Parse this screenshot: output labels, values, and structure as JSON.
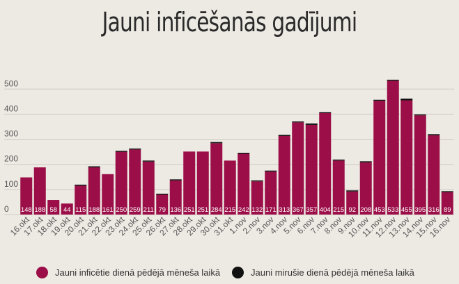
{
  "title": "Jauni inficēšanās gadījumi",
  "colors": {
    "background": "#ede9e3",
    "infected": "#9b0e47",
    "deaths": "#111111",
    "grid": "#cfcbc4",
    "axis_text": "#555555",
    "bar_label": "#ffffff"
  },
  "legend": {
    "infected_label": "Jauni inficētie dienā pēdējā mēneša laikā",
    "deaths_label": "Jauni mirušie dienā pēdējā mēneša laikā"
  },
  "chart_data": {
    "type": "bar",
    "stacked": true,
    "title": "Jauni inficēšanās gadījumi",
    "categories": [
      "16.okt",
      "17.okt",
      "18.okt",
      "19.okt",
      "20.okt",
      "21.okt",
      "22.okt",
      "23.okt",
      "24.okt",
      "25.okt",
      "26.okt",
      "27.okt",
      "28.okt",
      "29.okt",
      "30.okt",
      "31.okt",
      "1.nov",
      "2.nov",
      "3.nov",
      "4.nov",
      "5.nov",
      "6.nov",
      "7.nov",
      "8.nov",
      "9.nov",
      "10.nov",
      "11.nov",
      "12.nov",
      "13.nov",
      "14.nov",
      "15.nov",
      "16.nov"
    ],
    "series": [
      {
        "name": "Jauni inficētie dienā pēdējā mēneša laikā",
        "color": "#9b0e47",
        "values": [
          148,
          188,
          58,
          44,
          115,
          188,
          161,
          250,
          259,
          211,
          79,
          136,
          251,
          251,
          284,
          215,
          242,
          132,
          171,
          313,
          367,
          357,
          404,
          215,
          92,
          208,
          453,
          533,
          455,
          395,
          316,
          89
        ]
      },
      {
        "name": "Jauni mirušie dienā pēdējā mēneša laikā",
        "color": "#111111",
        "values": [
          0,
          0,
          0,
          0,
          2,
          1,
          0,
          1,
          1,
          2,
          1,
          1,
          0,
          0,
          5,
          0,
          2,
          1,
          2,
          5,
          3,
          6,
          2,
          2,
          1,
          2,
          3,
          4,
          7,
          2,
          3,
          2
        ]
      }
    ],
    "ylim": [
      0,
      560
    ],
    "yticks": [
      0,
      100,
      200,
      300,
      400,
      500
    ],
    "grid": true,
    "legend_position": "bottom"
  }
}
